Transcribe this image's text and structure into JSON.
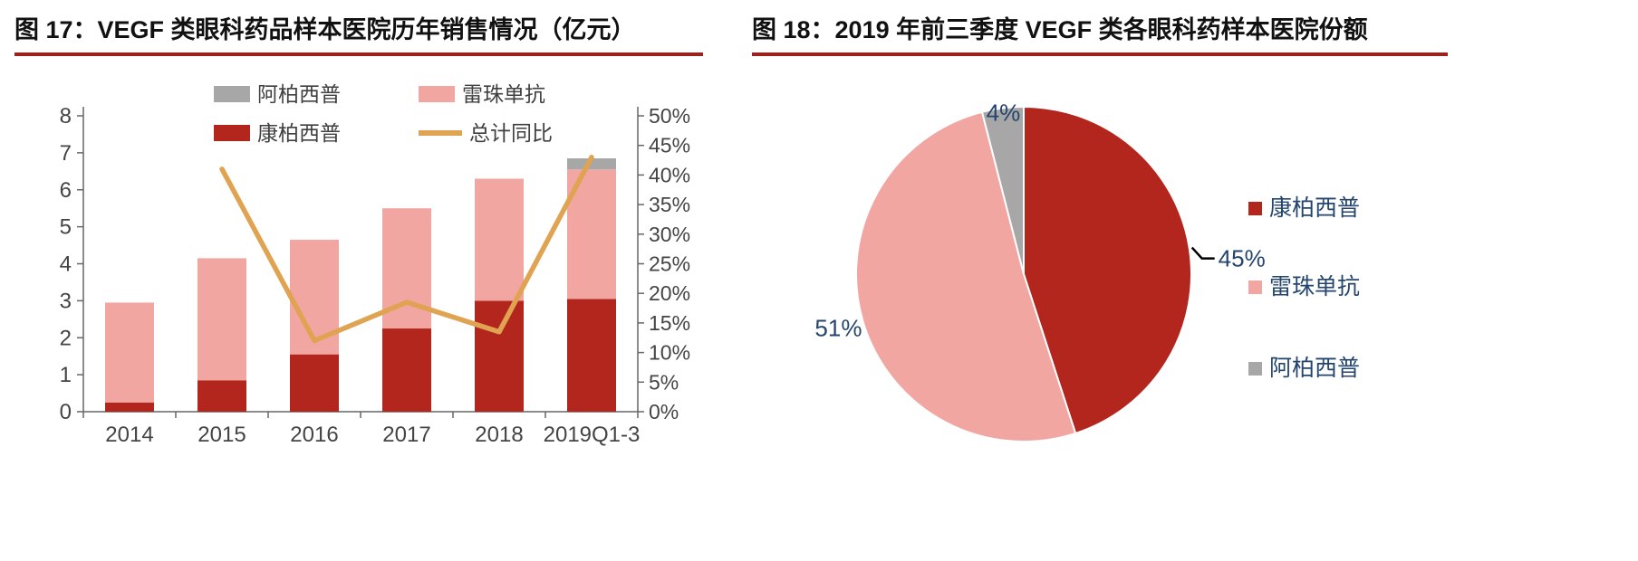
{
  "colors": {
    "title_text": "#111111",
    "title_underline": "#9c231c",
    "axis_text": "#444444",
    "legend_text": "#404040",
    "pie_label_text": "#23456e",
    "axis_line": "#666666",
    "leader_line": "#000000"
  },
  "chart_data": [
    {
      "type": "bar",
      "subtype": "stacked-bar-with-line",
      "title": "图 17：VEGF 类眼科药品样本医院历年销售情况（亿元）",
      "categories": [
        "2014",
        "2015",
        "2016",
        "2017",
        "2018",
        "2019Q1-3"
      ],
      "series": [
        {
          "name": "康柏西普",
          "type": "bar",
          "color": "#b2261e",
          "values": [
            0.25,
            0.85,
            1.55,
            2.25,
            3.0,
            3.05
          ]
        },
        {
          "name": "雷珠单抗",
          "type": "bar",
          "color": "#f2a6a1",
          "values": [
            2.7,
            3.3,
            3.1,
            3.25,
            3.3,
            3.5
          ]
        },
        {
          "name": "阿柏西普",
          "type": "bar",
          "color": "#a7a7a7",
          "values": [
            0,
            0,
            0,
            0,
            0,
            0.3
          ]
        },
        {
          "name": "总计同比",
          "type": "line",
          "color": "#e0a351",
          "axis": "right",
          "values": [
            null,
            41,
            12,
            18.5,
            13.5,
            43
          ]
        }
      ],
      "left_axis": {
        "min": 0,
        "max": 8,
        "step": 1,
        "tick_labels": [
          "0",
          "1",
          "2",
          "3",
          "4",
          "5",
          "6",
          "7",
          "8"
        ]
      },
      "right_axis": {
        "min": 0,
        "max": 50,
        "step": 5,
        "tick_labels": [
          "0%",
          "5%",
          "10%",
          "15%",
          "20%",
          "25%",
          "30%",
          "35%",
          "40%",
          "45%",
          "50%"
        ]
      },
      "legend_rows": [
        [
          "阿柏西普",
          "雷珠单抗"
        ],
        [
          "康柏西普",
          "总计同比"
        ]
      ],
      "legend_position": "top",
      "grid": false,
      "ylabel": "",
      "xlabel": ""
    },
    {
      "type": "pie",
      "title": "图 18：2019 年前三季度 VEGF 类各眼科药样本医院份额",
      "slices": [
        {
          "name": "康柏西普",
          "value": 45,
          "label": "45%",
          "color": "#b2261e"
        },
        {
          "name": "雷珠单抗",
          "value": 51,
          "label": "51%",
          "color": "#f2a6a1"
        },
        {
          "name": "阿柏西普",
          "value": 4,
          "label": "4%",
          "color": "#a7a7a7"
        }
      ],
      "start_angle_deg": 0,
      "direction": "clockwise",
      "legend": [
        "康柏西普",
        "雷珠单抗",
        "阿柏西普"
      ],
      "legend_position": "right"
    }
  ]
}
